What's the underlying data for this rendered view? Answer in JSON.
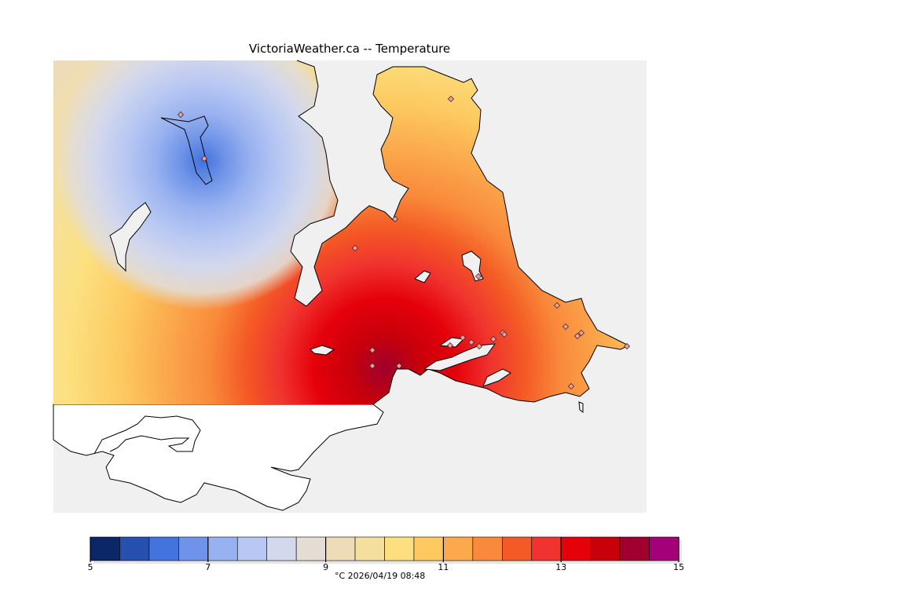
{
  "title": "VictoriaWeather.ca -- Temperature",
  "units_time": "°C  2026/04/19 08:48",
  "colorbar": {
    "min": 5,
    "max": 15,
    "step": 0.5,
    "tick_values": [
      "5",
      "7",
      "9",
      "11",
      "13",
      "15"
    ],
    "colors": [
      "#0b2768",
      "#2550b0",
      "#4373dc",
      "#6e93e8",
      "#98b1f0",
      "#b8c8f3",
      "#d3d8ec",
      "#e3ddd6",
      "#eedcb8",
      "#f5df9f",
      "#fce07f",
      "#fdc960",
      "#fba94c",
      "#f98a3b",
      "#f45a25",
      "#f0332f",
      "#e5000a",
      "#c8000a",
      "#a0002d",
      "#a3007a"
    ]
  },
  "map": {
    "stations_count": 22,
    "colors": {
      "ocean": "#f0f0f0",
      "outside": "#ffffff",
      "coast": "#000000"
    }
  }
}
